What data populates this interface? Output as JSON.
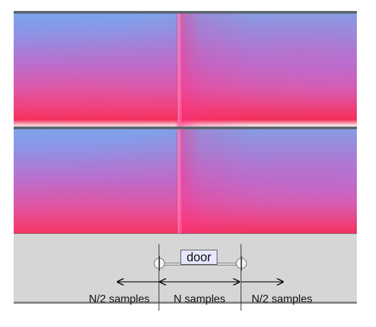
{
  "tracks": [
    {
      "type": "spectrogram",
      "colors": [
        "#7aa2ea",
        "#f22a55"
      ]
    },
    {
      "type": "spectrogram",
      "colors": [
        "#7aa2ea",
        "#f22a55"
      ]
    }
  ],
  "label_track": {
    "label": "door",
    "background": "#d6d6d6",
    "label_background": "#e6e6ff"
  },
  "annotations": {
    "left": "N/2 samples",
    "middle": "N samples",
    "right": "N/2 samples"
  }
}
